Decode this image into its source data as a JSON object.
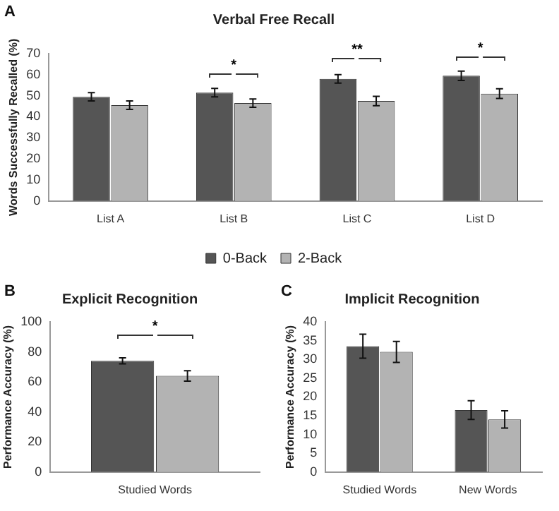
{
  "chart_data": [
    {
      "type": "bar",
      "title": "Verbal Free Recall",
      "ylabel": "Words Successfully Recalled (%)",
      "categories": [
        "List A",
        "List B",
        "List C",
        "List D"
      ],
      "series": [
        {
          "name": "0-Back",
          "color": "#555555",
          "values": [
            49.5,
            51.5,
            58,
            59.5
          ],
          "errors": [
            2,
            2,
            2,
            2.2
          ]
        },
        {
          "name": "2-Back",
          "color": "#b3b3b3",
          "values": [
            45.5,
            46.5,
            47.5,
            51
          ],
          "errors": [
            2,
            2,
            2.2,
            2.3
          ]
        }
      ],
      "ylim": [
        0,
        70
      ],
      "yticks": [
        0,
        10,
        20,
        30,
        40,
        50,
        60,
        70
      ],
      "legend": "bottom",
      "grid": false,
      "annotations": [
        "A",
        "*",
        "**",
        "*"
      ]
    },
    {
      "type": "bar",
      "title": "Explicit Recognition",
      "ylabel": "Performance Accuracy (%)",
      "categories": [
        "Studied Words"
      ],
      "series": [
        {
          "color": "#555555",
          "values": [
            74
          ],
          "errors": [
            2
          ]
        },
        {
          "color": "#b3b3b3",
          "values": [
            64
          ],
          "errors": [
            3.5
          ]
        }
      ],
      "ylim": [
        0,
        100
      ],
      "yticks": [
        0,
        20,
        40,
        60,
        80,
        100
      ],
      "legend": false,
      "grid": false,
      "annotations": [
        "B",
        "*"
      ]
    },
    {
      "type": "bar",
      "title": "Implicit Recognition",
      "ylabel": "Performance Accuracy (%)",
      "categories": [
        "Studied Words",
        "New Words"
      ],
      "series": [
        {
          "color": "#555555",
          "values": [
            33.5,
            16.5
          ],
          "errors": [
            3.2,
            2.5
          ]
        },
        {
          "color": "#b3b3b3",
          "values": [
            32,
            14
          ],
          "errors": [
            2.8,
            2.3
          ]
        }
      ],
      "ylim": [
        0,
        40
      ],
      "yticks": [
        0,
        5,
        10,
        15,
        20,
        25,
        30,
        35,
        40
      ],
      "legend": false,
      "grid": false,
      "annotations": [
        "C"
      ]
    }
  ]
}
